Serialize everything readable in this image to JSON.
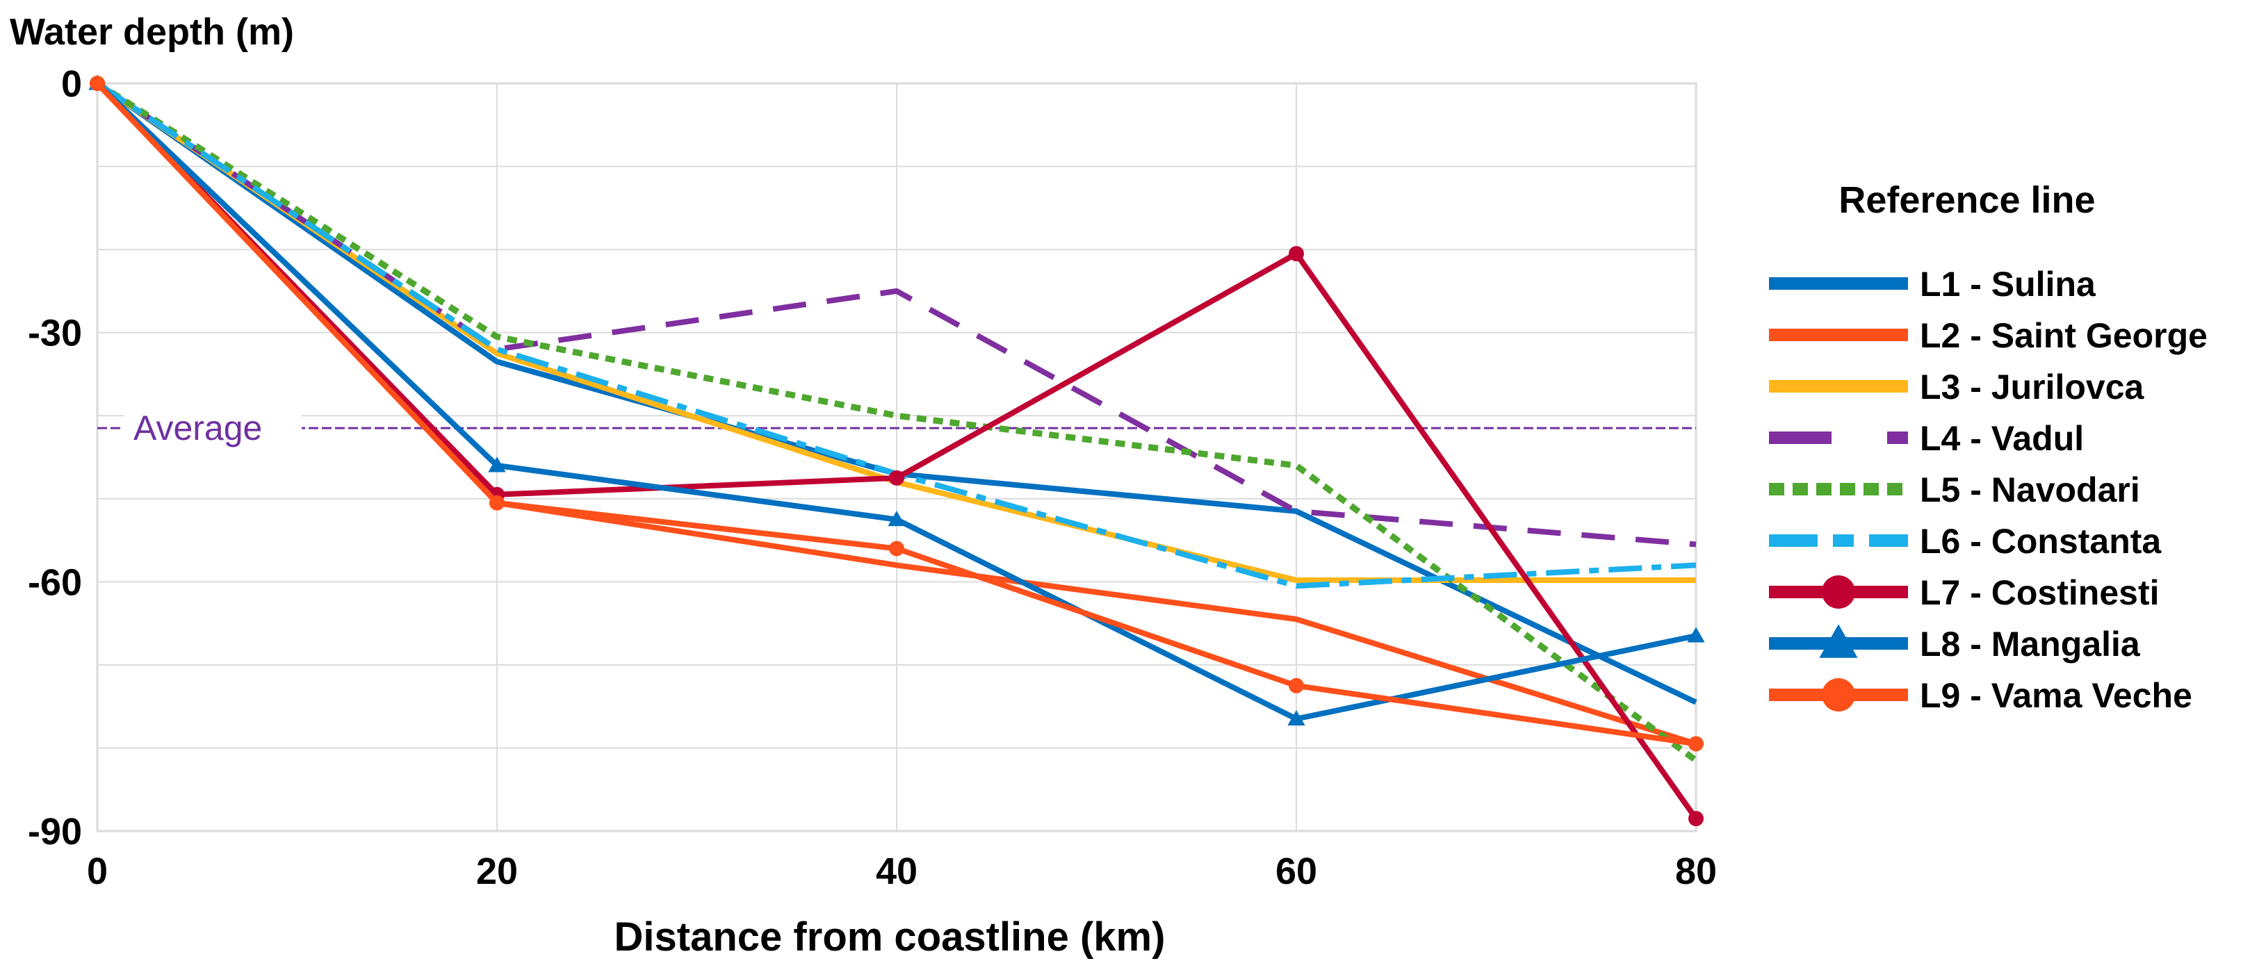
{
  "chart_data": {
    "type": "line",
    "ylabel": "Water depth (m)",
    "xlabel": "Distance from coastline (km)",
    "x": [
      0,
      20,
      40,
      60,
      80
    ],
    "xlim": [
      0,
      80
    ],
    "ylim": [
      -90,
      0
    ],
    "xticks": [
      0,
      20,
      40,
      60,
      80
    ],
    "yticks": [
      0,
      -30,
      -60,
      -90
    ],
    "grid": true,
    "legend_title": "Reference line",
    "legend_position": "right",
    "average": {
      "label": "Average",
      "value": -41.5,
      "color": "#7030A0"
    },
    "series": [
      {
        "name": "L1 - Sulina",
        "values": [
          0,
          -33.5,
          -47,
          -51.5,
          -74.5
        ],
        "color": "#0070C0",
        "style": "solid",
        "marker": "none"
      },
      {
        "name": "L2 - Saint George",
        "values": [
          0,
          -50.5,
          -58,
          -64.5,
          -79.5
        ],
        "color": "#FF4F1A",
        "style": "solid",
        "marker": "none"
      },
      {
        "name": "L3 - Jurilovca",
        "values": [
          0,
          -32.5,
          -48,
          -59.8,
          -59.8
        ],
        "color": "#FFB619",
        "style": "solid",
        "marker": "none"
      },
      {
        "name": "L4 - Vadul",
        "values": [
          0,
          -32,
          -25,
          -51.5,
          -55.5
        ],
        "color": "#7F2F9F",
        "style": "dashed",
        "marker": "none"
      },
      {
        "name": "L5 - Navodari",
        "values": [
          0,
          -30.5,
          -40,
          -46,
          -81.5
        ],
        "color": "#4EA72E",
        "style": "dotted",
        "marker": "none"
      },
      {
        "name": "L6 - Constanta",
        "values": [
          0,
          -32,
          -47,
          -60.5,
          -58
        ],
        "color": "#1CB0EC",
        "style": "dashdot",
        "marker": "none"
      },
      {
        "name": "L7 - Costinesti",
        "values": [
          0,
          -49.5,
          -47.5,
          -20.5,
          -88.5
        ],
        "color": "#C00032",
        "style": "solid",
        "marker": "circle"
      },
      {
        "name": "L8 - Mangalia",
        "values": [
          0,
          -46,
          -52.5,
          -76.5,
          -66.5
        ],
        "color": "#0070C0",
        "style": "solid",
        "marker": "triangle"
      },
      {
        "name": "L9 - Vama Veche",
        "values": [
          0,
          -50.5,
          -56,
          -72.5,
          -79.5
        ],
        "color": "#FF4F1A",
        "style": "solid",
        "marker": "circle"
      }
    ]
  }
}
